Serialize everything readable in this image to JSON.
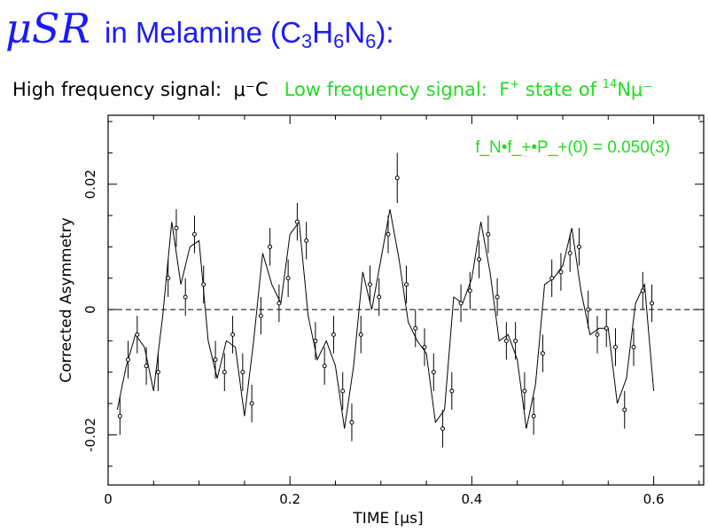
{
  "header": {
    "title_symbol": "μSR",
    "title_prefix": "in Melamine (",
    "title_formula": [
      {
        "t": "C",
        "sub": "3"
      },
      {
        "t": "H",
        "sub": "6"
      },
      {
        "t": "N",
        "sub": "6"
      }
    ],
    "title_suffix": "):"
  },
  "signals": {
    "high_label": "High frequency signal:",
    "high_value": "μ⁻C",
    "low_label": "Low frequency signal:",
    "low_state_prefix": "F",
    "low_state_sup": "+",
    "low_state_mid": " state of ",
    "low_iso_sup": "14",
    "low_iso_rest": "Nμ⁻"
  },
  "colors": {
    "title": "#1a1aff",
    "low_signal": "#22dd22",
    "data": "#000000"
  },
  "chart_data": {
    "type": "scatter",
    "xlabel": "TIME [μs]",
    "ylabel": "Corrected Asymmetry",
    "xlim": [
      0,
      0.655
    ],
    "ylim": [
      -0.028,
      0.031
    ],
    "x_ticks": [
      0,
      0.2,
      0.4,
      0.6
    ],
    "x_tick_labels": [
      "0",
      "0.2",
      "0.4",
      "0.6"
    ],
    "y_ticks": [
      -0.02,
      0,
      0.02
    ],
    "y_tick_labels": [
      "-0.02",
      "0",
      "0.02"
    ],
    "reference_line": {
      "y": 0,
      "style": "dashed"
    },
    "annotation": "f_N•f_+•P_+(0) = 0.050(3)",
    "fit_curve": {
      "x": [
        0.01,
        0.02,
        0.03,
        0.04,
        0.05,
        0.06,
        0.07,
        0.08,
        0.09,
        0.1,
        0.11,
        0.12,
        0.13,
        0.14,
        0.15,
        0.16,
        0.17,
        0.18,
        0.19,
        0.2,
        0.21,
        0.22,
        0.23,
        0.24,
        0.25,
        0.26,
        0.27,
        0.28,
        0.29,
        0.3,
        0.31,
        0.32,
        0.33,
        0.34,
        0.35,
        0.36,
        0.37,
        0.38,
        0.39,
        0.4,
        0.41,
        0.42,
        0.43,
        0.44,
        0.45,
        0.46,
        0.47,
        0.48,
        0.49,
        0.5,
        0.51,
        0.52,
        0.53,
        0.54,
        0.55,
        0.56,
        0.57,
        0.58,
        0.59,
        0.6
      ],
      "y": [
        -0.016,
        -0.009,
        -0.004,
        -0.006,
        -0.013,
        -0.001,
        0.014,
        0.004,
        0.01,
        0.011,
        -0.005,
        -0.011,
        -0.005,
        -0.006,
        -0.017,
        -0.005,
        0.009,
        0.004,
        0.001,
        0.012,
        0.014,
        -0.001,
        -0.008,
        -0.005,
        -0.009,
        -0.019,
        -0.009,
        0.006,
        0.0,
        0.008,
        0.016,
        0.008,
        -0.002,
        -0.005,
        -0.007,
        -0.018,
        -0.016,
        0.002,
        0.001,
        0.005,
        0.014,
        0.006,
        -0.005,
        -0.004,
        -0.008,
        -0.019,
        -0.012,
        0.004,
        0.005,
        0.007,
        0.013,
        0.003,
        -0.004,
        -0.003,
        -0.003,
        -0.015,
        -0.011,
        0.001,
        0.004,
        -0.013
      ]
    },
    "points": {
      "x": [
        0.013,
        0.022,
        0.032,
        0.042,
        0.055,
        0.066,
        0.075,
        0.085,
        0.095,
        0.105,
        0.118,
        0.128,
        0.137,
        0.148,
        0.158,
        0.168,
        0.178,
        0.188,
        0.198,
        0.208,
        0.218,
        0.228,
        0.238,
        0.248,
        0.258,
        0.268,
        0.278,
        0.288,
        0.298,
        0.308,
        0.318,
        0.328,
        0.338,
        0.348,
        0.358,
        0.368,
        0.378,
        0.388,
        0.398,
        0.408,
        0.418,
        0.428,
        0.438,
        0.448,
        0.458,
        0.468,
        0.478,
        0.488,
        0.498,
        0.508,
        0.518,
        0.528,
        0.538,
        0.548,
        0.558,
        0.568,
        0.578,
        0.588,
        0.598
      ],
      "y": [
        -0.017,
        -0.008,
        -0.004,
        -0.009,
        -0.01,
        0.005,
        0.013,
        0.002,
        0.012,
        0.004,
        -0.008,
        -0.01,
        -0.004,
        -0.01,
        -0.015,
        -0.001,
        0.01,
        0.001,
        0.005,
        0.014,
        0.011,
        -0.005,
        -0.009,
        -0.004,
        -0.013,
        -0.018,
        -0.004,
        0.004,
        0.002,
        0.012,
        0.021,
        0.004,
        -0.003,
        -0.006,
        -0.01,
        -0.019,
        -0.013,
        0.001,
        0.003,
        0.008,
        0.012,
        0.002,
        -0.005,
        -0.005,
        -0.013,
        -0.017,
        -0.007,
        0.005,
        0.006,
        0.009,
        0.01,
        0.0,
        -0.004,
        -0.003,
        -0.006,
        -0.016,
        -0.006,
        0.003,
        0.001
      ],
      "error": [
        0.003,
        0.003,
        0.003,
        0.003,
        0.003,
        0.003,
        0.003,
        0.003,
        0.003,
        0.003,
        0.003,
        0.003,
        0.003,
        0.003,
        0.003,
        0.003,
        0.003,
        0.003,
        0.003,
        0.003,
        0.003,
        0.003,
        0.003,
        0.003,
        0.003,
        0.003,
        0.003,
        0.003,
        0.003,
        0.003,
        0.004,
        0.003,
        0.003,
        0.003,
        0.003,
        0.003,
        0.003,
        0.003,
        0.003,
        0.003,
        0.003,
        0.003,
        0.003,
        0.003,
        0.003,
        0.003,
        0.003,
        0.003,
        0.003,
        0.003,
        0.003,
        0.003,
        0.003,
        0.003,
        0.003,
        0.003,
        0.003,
        0.003,
        0.003
      ]
    }
  }
}
